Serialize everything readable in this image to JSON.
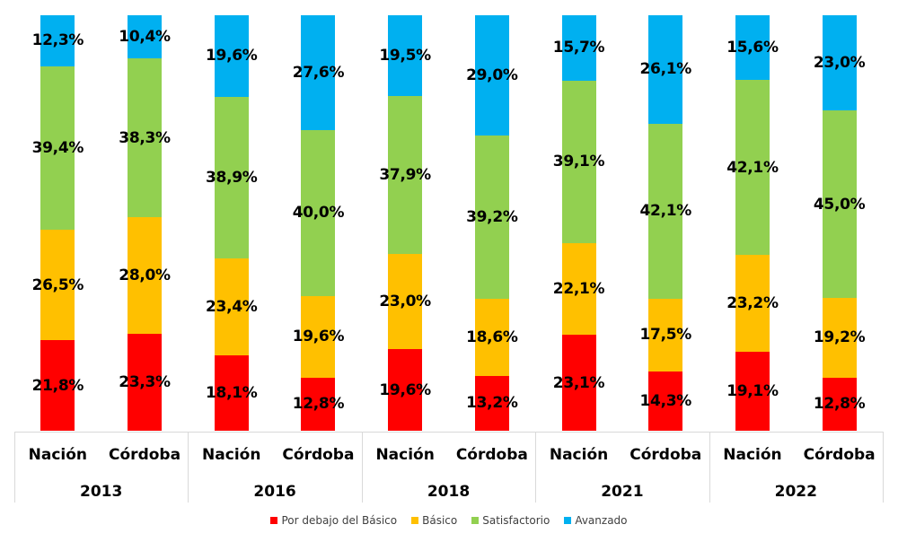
{
  "chart_data": {
    "type": "bar",
    "stacked": true,
    "percent_stacked": true,
    "title": "",
    "xlabel": "",
    "ylabel": "",
    "ylim": [
      0,
      100
    ],
    "grid": false,
    "legend_position": "bottom",
    "groups": [
      "2013",
      "2016",
      "2018",
      "2021",
      "2022"
    ],
    "subcategories": [
      "Nación",
      "Córdoba"
    ],
    "categories": [
      "Nación 2013",
      "Córdoba 2013",
      "Nación 2016",
      "Córdoba 2016",
      "Nación 2018",
      "Córdoba 2018",
      "Nación 2021",
      "Córdoba 2021",
      "Nación 2022",
      "Córdoba 2022"
    ],
    "series": [
      {
        "name": "Por debajo del Básico",
        "color": "#ff0000",
        "values": [
          21.8,
          23.3,
          18.1,
          12.8,
          19.6,
          13.2,
          23.1,
          14.3,
          19.1,
          12.8
        ],
        "labels": [
          "21,8%",
          "23,3%",
          "18,1%",
          "12,8%",
          "19,6%",
          "13,2%",
          "23,1%",
          "14,3%",
          "19,1%",
          "12,8%"
        ]
      },
      {
        "name": "Básico",
        "color": "#ffc000",
        "values": [
          26.5,
          28.0,
          23.4,
          19.6,
          23.0,
          18.6,
          22.1,
          17.5,
          23.2,
          19.2
        ],
        "labels": [
          "26,5%",
          "28,0%",
          "23,4%",
          "19,6%",
          "23,0%",
          "18,6%",
          "22,1%",
          "17,5%",
          "23,2%",
          "19,2%"
        ]
      },
      {
        "name": "Satisfactorio",
        "color": "#92d050",
        "values": [
          39.4,
          38.3,
          38.9,
          40.0,
          37.9,
          39.2,
          39.1,
          42.1,
          42.1,
          45.0
        ],
        "labels": [
          "39,4%",
          "38,3%",
          "38,9%",
          "40,0%",
          "37,9%",
          "39,2%",
          "39,1%",
          "42,1%",
          "42,1%",
          "45,0%"
        ]
      },
      {
        "name": "Avanzado",
        "color": "#00b0f0",
        "values": [
          12.3,
          10.4,
          19.6,
          27.6,
          19.5,
          29.0,
          15.7,
          26.1,
          15.6,
          23.0
        ],
        "labels": [
          "12,3%",
          "10,4%",
          "19,6%",
          "27,6%",
          "19,5%",
          "29,0%",
          "15,7%",
          "26,1%",
          "15,6%",
          "23,0%"
        ]
      }
    ]
  }
}
